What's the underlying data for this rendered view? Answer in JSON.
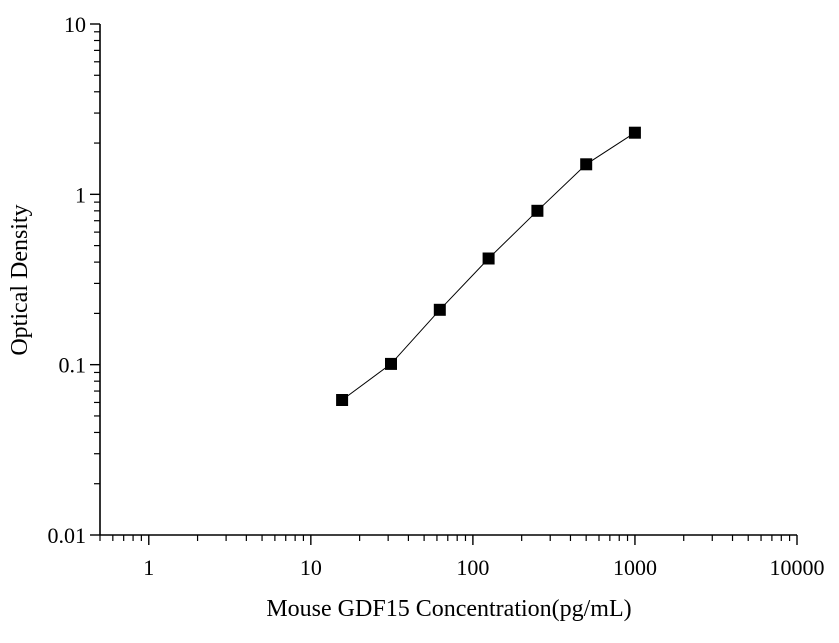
{
  "chart_data": {
    "type": "scatter",
    "xlabel": "Mouse GDF15 Concentration(pg/mL)",
    "ylabel": "Optical Density",
    "x_scale": "log",
    "y_scale": "log",
    "xlim": [
      0.5,
      10000
    ],
    "ylim": [
      0.01,
      10
    ],
    "x_ticks": [
      {
        "value": 1,
        "label": "1"
      },
      {
        "value": 10,
        "label": "10"
      },
      {
        "value": 100,
        "label": "100"
      },
      {
        "value": 1000,
        "label": "1000"
      },
      {
        "value": 10000,
        "label": "10000"
      }
    ],
    "y_ticks": [
      {
        "value": 0.01,
        "label": "0.01"
      },
      {
        "value": 0.1,
        "label": "0.1"
      },
      {
        "value": 1,
        "label": "1"
      },
      {
        "value": 10,
        "label": "10"
      }
    ],
    "grid": false,
    "marker": "square",
    "connect_points": true,
    "series": [
      {
        "x": [
          15.6,
          31.25,
          62.5,
          125,
          250,
          500,
          1000
        ],
        "y": [
          0.062,
          0.101,
          0.21,
          0.42,
          0.8,
          1.5,
          2.3
        ]
      }
    ],
    "colors": {
      "marker": "#000000",
      "line": "#000000",
      "axis": "#000000"
    }
  }
}
